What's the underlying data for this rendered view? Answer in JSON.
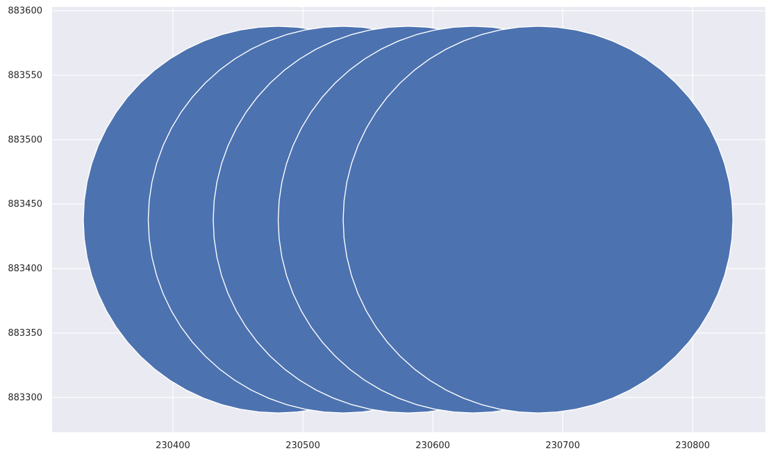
{
  "chart_data": {
    "type": "scatter",
    "title": "",
    "xlabel": "",
    "ylabel": "",
    "xlim": [
      230307,
      230856
    ],
    "ylim": [
      883273,
      883603
    ],
    "grid": true,
    "colors": {
      "background": "#eaeaf2",
      "grid": "#ffffff",
      "fill": "#4c72b0",
      "edge": "#ffffff"
    },
    "x_ticks": [
      230400,
      230500,
      230600,
      230700,
      230800
    ],
    "x_tick_labels": [
      "230400",
      "230500",
      "230600",
      "230700",
      "230800"
    ],
    "y_ticks": [
      883300,
      883350,
      883400,
      883450,
      883500,
      883550,
      883600
    ],
    "y_tick_labels": [
      "883300",
      "883350",
      "883400",
      "883450",
      "883500",
      "883550",
      "883600"
    ],
    "shapes": [
      {
        "kind": "circle-polygon",
        "center_x": 230481,
        "center_y": 883438,
        "radius": 150
      },
      {
        "kind": "circle-polygon",
        "center_x": 230531,
        "center_y": 883438,
        "radius": 150
      },
      {
        "kind": "circle-polygon",
        "center_x": 230581,
        "center_y": 883438,
        "radius": 150
      },
      {
        "kind": "circle-polygon",
        "center_x": 230631,
        "center_y": 883438,
        "radius": 150
      },
      {
        "kind": "circle-polygon",
        "center_x": 230681,
        "center_y": 883438,
        "radius": 150
      }
    ]
  }
}
